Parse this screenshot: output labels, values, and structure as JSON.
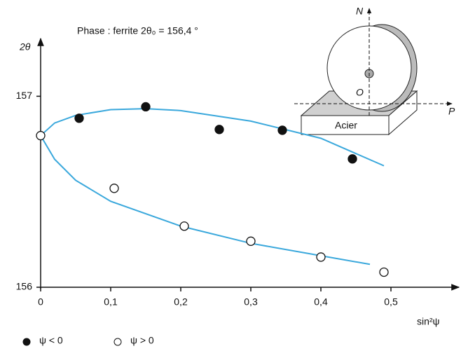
{
  "chart_data": {
    "type": "scatter",
    "title": "Phase : ferrite 2θ₀ = 156,4 °",
    "xlabel": "sin²ψ",
    "ylabel": "2θ",
    "xlim": [
      0,
      0.597
    ],
    "ylim": [
      156,
      157.383
    ],
    "xticks": [
      0,
      {
        "value": 0.1,
        "label": "0,1"
      },
      {
        "value": 0.2,
        "label": "0,2"
      },
      {
        "value": 0.3,
        "label": "0,3"
      },
      {
        "value": 0.4,
        "label": "0,4"
      },
      {
        "value": 0.5,
        "label": "0,5"
      }
    ],
    "yticks": [
      156,
      157
    ],
    "series": [
      {
        "name": "ψ < 0",
        "color": "#111111",
        "marker": "filled",
        "x": [
          0.055,
          0.15,
          0.255,
          0.345,
          0.445
        ],
        "values": [
          156.885,
          156.945,
          156.826,
          156.822,
          156.672
        ]
      },
      {
        "name": "ψ > 0",
        "color": "#111111",
        "marker": "open",
        "x": [
          0,
          0.105,
          0.205,
          0.3,
          0.4,
          0.49
        ],
        "values": [
          156.794,
          156.518,
          156.32,
          156.241,
          156.158,
          156.079
        ]
      },
      {
        "color": "#3aa8dc",
        "marker": "line",
        "x": [
          0,
          0.02,
          0.05,
          0.1,
          0.15,
          0.2,
          0.3,
          0.4,
          0.49
        ],
        "values": [
          156.794,
          156.86,
          156.9,
          156.93,
          156.935,
          156.925,
          156.87,
          156.78,
          156.636
        ]
      },
      {
        "color": "#3aa8dc",
        "marker": "line",
        "x": [
          0,
          0.02,
          0.05,
          0.1,
          0.2,
          0.3,
          0.4,
          0.47
        ],
        "values": [
          156.794,
          156.67,
          156.56,
          156.45,
          156.32,
          156.23,
          156.165,
          156.12
        ]
      }
    ]
  },
  "inset": {
    "n": "N",
    "o": "O",
    "p": "P",
    "block": "Acier"
  }
}
